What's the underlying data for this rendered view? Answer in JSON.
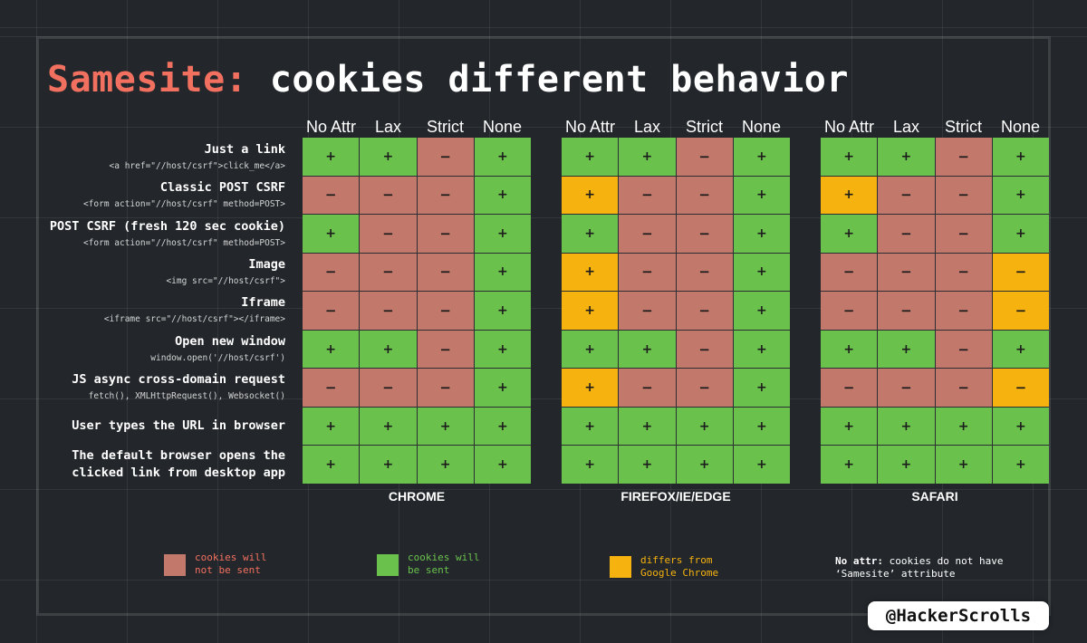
{
  "title": {
    "accent": "Samesite:",
    "rest": " cookies different behavior"
  },
  "columns": [
    "No Attr",
    "Lax",
    "Strict",
    "None"
  ],
  "rows": [
    {
      "label": "Just a link",
      "sub": "<a href=\"//host/csrf\">click_me</a>"
    },
    {
      "label": "Classic POST CSRF",
      "sub": "<form action=\"//host/csrf\" method=POST>"
    },
    {
      "label": "POST CSRF (fresh 120 sec cookie)",
      "sub": "<form action=\"//host/csrf\" method=POST>"
    },
    {
      "label": "Image",
      "sub": "<img src=\"//host/csrf\">"
    },
    {
      "label": "Iframe",
      "sub": "<iframe src=\"//host/csrf\"></iframe>"
    },
    {
      "label": "Open new window",
      "sub": "window.open('//host/csrf')"
    },
    {
      "label": "JS async cross-domain request",
      "sub": "fetch(), XMLHttpRequest(), Websocket()"
    },
    {
      "label": "User types the URL in browser",
      "sub": ""
    },
    {
      "label": "The default browser opens the clicked link from desktop app",
      "sub": ""
    }
  ],
  "symbols": {
    "sent": "+",
    "not_sent": "−"
  },
  "colors": {
    "sent": "#6ac24d",
    "not_sent": "#c2786b",
    "differs": "#f6b20e",
    "accent": "#f2705f"
  },
  "browsers": [
    {
      "name": "CHROME",
      "cells": [
        [
          "+",
          "+",
          "-",
          "+"
        ],
        [
          "-",
          "-",
          "-",
          "+"
        ],
        [
          "+",
          "-",
          "-",
          "+"
        ],
        [
          "-",
          "-",
          "-",
          "+"
        ],
        [
          "-",
          "-",
          "-",
          "+"
        ],
        [
          "+",
          "+",
          "-",
          "+"
        ],
        [
          "-",
          "-",
          "-",
          "+"
        ],
        [
          "+",
          "+",
          "+",
          "+"
        ],
        [
          "+",
          "+",
          "+",
          "+"
        ]
      ]
    },
    {
      "name": "FIREFOX/IE/EDGE",
      "cells": [
        [
          "+",
          "+",
          "-",
          "+"
        ],
        [
          "Y+",
          "-",
          "-",
          "+"
        ],
        [
          "+",
          "-",
          "-",
          "+"
        ],
        [
          "Y+",
          "-",
          "-",
          "+"
        ],
        [
          "Y+",
          "-",
          "-",
          "+"
        ],
        [
          "+",
          "+",
          "-",
          "+"
        ],
        [
          "Y+",
          "-",
          "-",
          "+"
        ],
        [
          "+",
          "+",
          "+",
          "+"
        ],
        [
          "+",
          "+",
          "+",
          "+"
        ]
      ]
    },
    {
      "name": "SAFARI",
      "cells": [
        [
          "+",
          "+",
          "-",
          "+"
        ],
        [
          "Y+",
          "-",
          "-",
          "+"
        ],
        [
          "+",
          "-",
          "-",
          "+"
        ],
        [
          "-",
          "-",
          "-",
          "Y-"
        ],
        [
          "-",
          "-",
          "-",
          "Y-"
        ],
        [
          "+",
          "+",
          "-",
          "+"
        ],
        [
          "-",
          "-",
          "-",
          "Y-"
        ],
        [
          "+",
          "+",
          "+",
          "+"
        ],
        [
          "+",
          "+",
          "+",
          "+"
        ]
      ]
    }
  ],
  "legend": {
    "not_sent": "cookies will\nnot be sent",
    "sent": "cookies will\nbe sent",
    "differs": "differs from\nGoogle Chrome",
    "note_bold": "No attr:",
    "note_rest": " cookies do not have ‘Samesite’ attribute"
  },
  "handle": "@HackerScrolls"
}
